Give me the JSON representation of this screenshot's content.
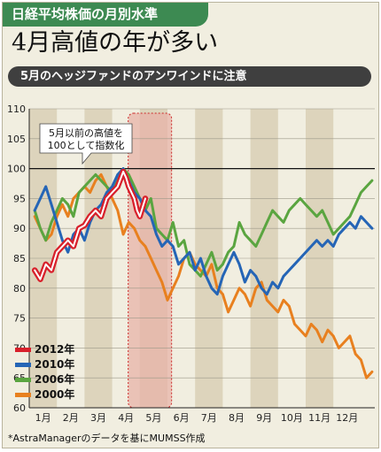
{
  "header": {
    "tag": "日経平均株価の月別水準"
  },
  "headline": "4月高値の年が多い",
  "subheading": "5月のヘッジファンドのアンワインドに注意",
  "source": "*AstraManagerのデータを基にMUMSS作成",
  "colors": {
    "tag_bg": "#3d8a52",
    "bar_bg": "#3f3f3f",
    "panel_bg": "#f1eee0",
    "stripe": "#ddd4bc",
    "highlight": "#e7b3a8"
  },
  "chart_data": {
    "type": "line",
    "ylim": [
      60,
      110
    ],
    "yticks": [
      60,
      65,
      70,
      75,
      80,
      85,
      90,
      95,
      100,
      105,
      110
    ],
    "months": [
      "1月",
      "2月",
      "3月",
      "4月",
      "5月",
      "6月",
      "7月",
      "8月",
      "9月",
      "10月",
      "11月",
      "12月"
    ],
    "reference_line": 100,
    "annotation": [
      "5月以前の高値を",
      "100として指数化"
    ],
    "series": [
      {
        "name": "2012年",
        "color": "#d8202b",
        "x": [
          0.2,
          0.4,
          0.6,
          0.8,
          1.0,
          1.2,
          1.4,
          1.6,
          1.8,
          2.0,
          2.2,
          2.4,
          2.6,
          2.8,
          3.0,
          3.2,
          3.4,
          3.5,
          3.6,
          3.8,
          3.9,
          4.0,
          4.2
        ],
        "y": [
          83,
          81.5,
          84,
          83,
          86,
          87,
          88,
          87,
          90,
          90.5,
          92,
          93,
          92,
          95,
          96,
          97,
          99.5,
          98.5,
          97,
          95,
          93,
          92,
          95
        ]
      },
      {
        "name": "2010年",
        "color": "#2565b6",
        "x": [
          0.2,
          0.4,
          0.6,
          0.8,
          1.0,
          1.2,
          1.4,
          1.6,
          1.8,
          2.0,
          2.2,
          2.4,
          2.6,
          2.8,
          3.0,
          3.2,
          3.4,
          3.6,
          3.8,
          4.0,
          4.2,
          4.4,
          4.6,
          4.8,
          5.0,
          5.2,
          5.4,
          5.6,
          5.8,
          6.0,
          6.2,
          6.4,
          6.6,
          6.8,
          7.0,
          7.2,
          7.4,
          7.6,
          7.8,
          8.0,
          8.2,
          8.4,
          8.6,
          8.8,
          9.0,
          9.2,
          9.4,
          9.6,
          9.8,
          10.0,
          10.2,
          10.4,
          10.6,
          10.8,
          11.0,
          11.2,
          11.4,
          11.6,
          11.8,
          12.0,
          12.2,
          12.4
        ],
        "y": [
          93,
          95,
          97,
          94,
          91,
          88,
          86,
          89,
          90,
          88,
          91,
          93,
          94,
          96,
          97,
          99,
          100,
          98,
          96,
          95,
          93,
          92,
          89,
          87,
          88,
          87,
          84,
          85,
          86,
          83,
          85,
          82,
          80,
          79,
          82,
          84,
          86,
          84,
          81,
          83,
          82,
          80,
          79,
          81,
          80,
          82,
          83,
          84,
          85,
          86,
          87,
          88,
          87,
          88,
          87,
          89,
          90,
          91,
          90,
          92,
          91,
          90
        ]
      },
      {
        "name": "2006年",
        "color": "#5aa540",
        "x": [
          0.2,
          0.4,
          0.6,
          0.8,
          1.0,
          1.2,
          1.4,
          1.6,
          1.8,
          2.0,
          2.2,
          2.4,
          2.6,
          2.8,
          3.0,
          3.2,
          3.4,
          3.6,
          3.8,
          4.0,
          4.2,
          4.4,
          4.6,
          4.8,
          5.0,
          5.2,
          5.4,
          5.6,
          5.8,
          6.0,
          6.2,
          6.4,
          6.6,
          6.8,
          7.0,
          7.2,
          7.4,
          7.6,
          7.8,
          8.0,
          8.2,
          8.4,
          8.6,
          8.8,
          9.0,
          9.2,
          9.4,
          9.6,
          9.8,
          10.0,
          10.2,
          10.4,
          10.6,
          10.8,
          11.0,
          11.2,
          11.4,
          11.6,
          11.8,
          12.0,
          12.2,
          12.4
        ],
        "y": [
          93,
          90,
          88,
          91,
          93,
          95,
          94,
          92,
          96,
          97,
          98,
          99,
          98,
          97,
          96,
          98,
          100,
          99,
          97,
          95,
          93,
          95,
          90,
          89,
          88,
          91,
          87,
          88,
          84,
          83,
          82,
          84,
          86,
          83,
          84,
          86,
          87,
          91,
          89,
          88,
          87,
          89,
          91,
          93,
          92,
          91,
          93,
          94,
          95,
          94,
          93,
          92,
          93,
          91,
          89,
          90,
          91,
          92,
          94,
          96,
          97,
          98
        ]
      },
      {
        "name": "2000年",
        "color": "#e8801f",
        "x": [
          0.2,
          0.4,
          0.6,
          0.8,
          1.0,
          1.2,
          1.4,
          1.6,
          1.8,
          2.0,
          2.2,
          2.4,
          2.6,
          2.8,
          3.0,
          3.2,
          3.4,
          3.6,
          3.8,
          4.0,
          4.2,
          4.4,
          4.6,
          4.8,
          5.0,
          5.2,
          5.4,
          5.6,
          5.8,
          6.0,
          6.2,
          6.4,
          6.6,
          6.8,
          7.0,
          7.2,
          7.4,
          7.6,
          7.8,
          8.0,
          8.2,
          8.4,
          8.6,
          8.8,
          9.0,
          9.2,
          9.4,
          9.6,
          9.8,
          10.0,
          10.2,
          10.4,
          10.6,
          10.8,
          11.0,
          11.2,
          11.4,
          11.6,
          11.8,
          12.0,
          12.2,
          12.4
        ],
        "y": [
          92,
          90,
          88,
          89,
          92,
          94,
          92,
          95,
          96,
          97,
          96,
          98,
          99,
          97,
          95,
          93,
          89,
          91,
          90,
          88,
          87,
          85,
          83,
          81,
          78,
          80,
          82,
          85,
          86,
          84,
          83,
          82,
          84,
          80,
          79,
          76,
          78,
          80,
          79,
          77,
          80,
          81,
          78,
          77,
          76,
          78,
          77,
          74,
          73,
          72,
          74,
          73,
          71,
          73,
          72,
          70,
          71,
          72,
          69,
          68,
          65,
          66
        ]
      }
    ]
  }
}
